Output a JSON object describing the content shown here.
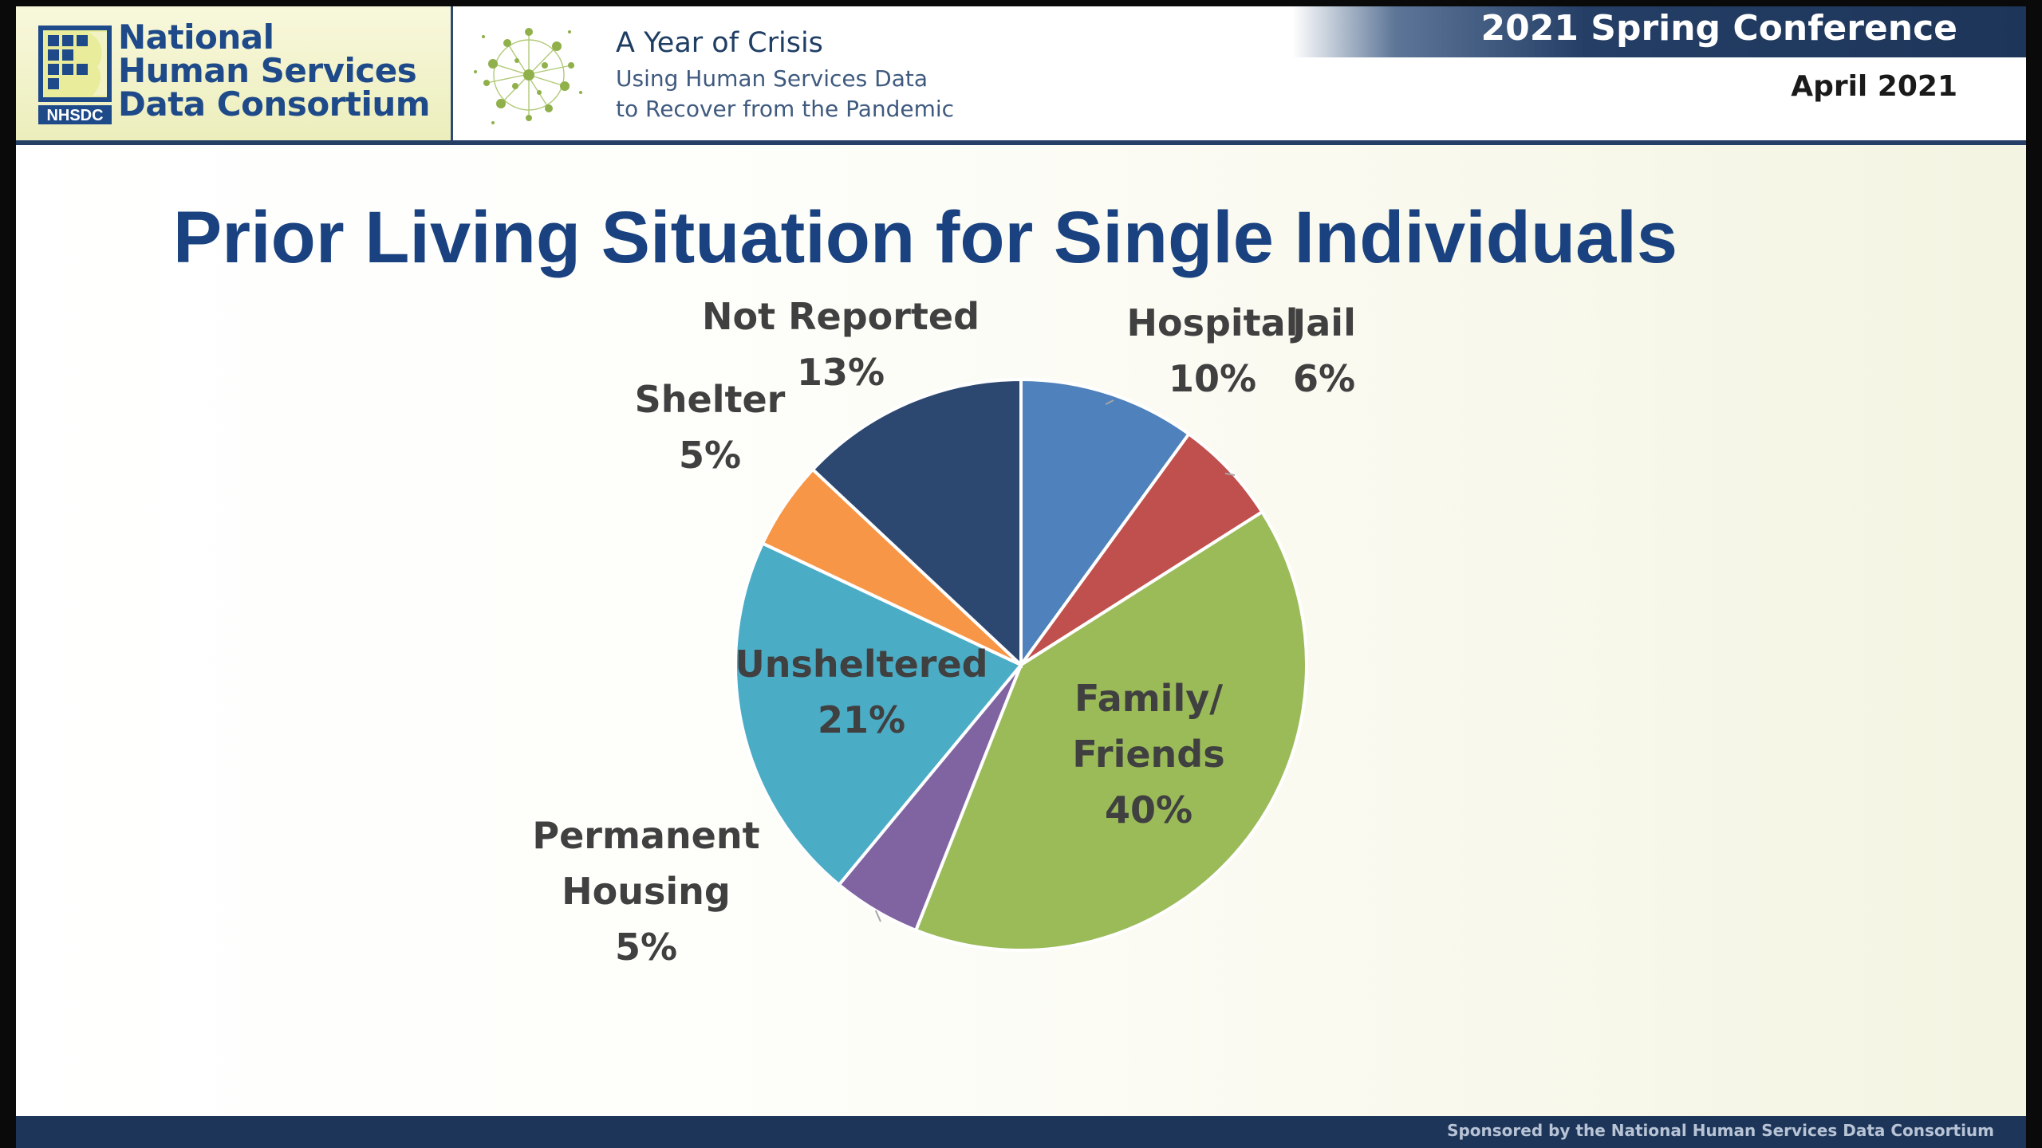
{
  "header": {
    "logo": {
      "line1": "National",
      "line2": "Human Services",
      "line3": "Data Consortium",
      "mark_text": "NHSDC"
    },
    "conference": {
      "title": "A Year of Crisis",
      "subtitle_line1": "Using Human Services Data",
      "subtitle_line2": "to Recover from the Pandemic"
    },
    "band_text": "2021 Spring Conference",
    "date": "April 2021"
  },
  "slide": {
    "title": "Prior Living Situation for Single Individuals"
  },
  "chart_data": {
    "type": "pie",
    "title": "Prior Living Situation for Single Individuals",
    "start": "12 o'clock",
    "direction": "clockwise",
    "slices": [
      {
        "label": "Hospital",
        "value": 10,
        "display": "10%",
        "color": "#4f81bd"
      },
      {
        "label": "Jail",
        "value": 6,
        "display": "6%",
        "color": "#c0504d"
      },
      {
        "label": "Family/\nFriends",
        "value": 40,
        "display": "40%",
        "color": "#9bbb59"
      },
      {
        "label": "Permanent\nHousing",
        "value": 5,
        "display": "5%",
        "color": "#8064a2"
      },
      {
        "label": "Unsheltered",
        "value": 21,
        "display": "21%",
        "color": "#4bacc6"
      },
      {
        "label": "Shelter",
        "value": 5,
        "display": "5%",
        "color": "#f79646"
      },
      {
        "label": "Not Reported",
        "value": 13,
        "display": "13%",
        "color": "#2c4770"
      }
    ]
  },
  "footer": {
    "sponsor": "Sponsored by the National Human  Services Data Consortium"
  }
}
